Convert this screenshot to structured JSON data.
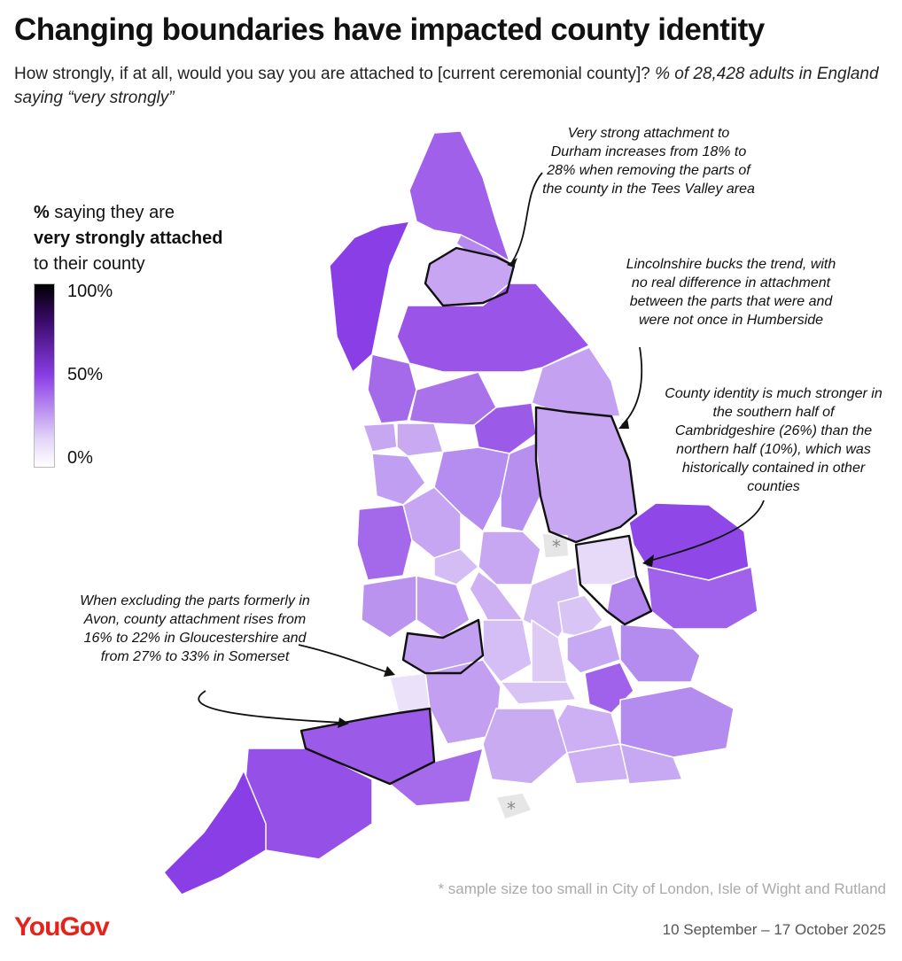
{
  "title": "Changing boundaries have impacted county identity",
  "subtitle_main": "How strongly, if at all, would you say you are attached to [current ceremonial county]?",
  "subtitle_italic": "% of 28,428 adults in England saying “very strongly”",
  "legend": {
    "line1_bold": "%",
    "line1_rest": " saying they are",
    "line2": "very strongly attached",
    "line3": "to their county",
    "ticks": [
      "100%",
      "50%",
      "0%"
    ]
  },
  "annotations": {
    "durham": "Very strong attachment to Durham increases from 18% to 28% when removing the parts of the county in the Tees Valley area",
    "lincolnshire": "Lincolnshire bucks the trend, with no real difference in attachment between the parts that were and were not once in Humberside",
    "cambridgeshire": "County identity is much stronger in the southern half of Cambridgeshire (26%) than the northern half (10%), which was historically contained in other counties",
    "avon": "When excluding the parts formerly in Avon, county attachment rises from 16% to 22% in Gloucestershire and from 27% to 33% in Somerset"
  },
  "small_sample_marker": "*",
  "footnote": "* sample size too small in City of London, Isle of Wight and Rutland",
  "dates": "10 September – 17 October 2025",
  "logo": "YouGov",
  "colors": {
    "high": "#8a3ee6",
    "mid": "#a865ea",
    "low": "#d6c1f3",
    "very_low": "#ede4fa",
    "na": "#e6e6e6",
    "logo": "#e4241b"
  }
}
